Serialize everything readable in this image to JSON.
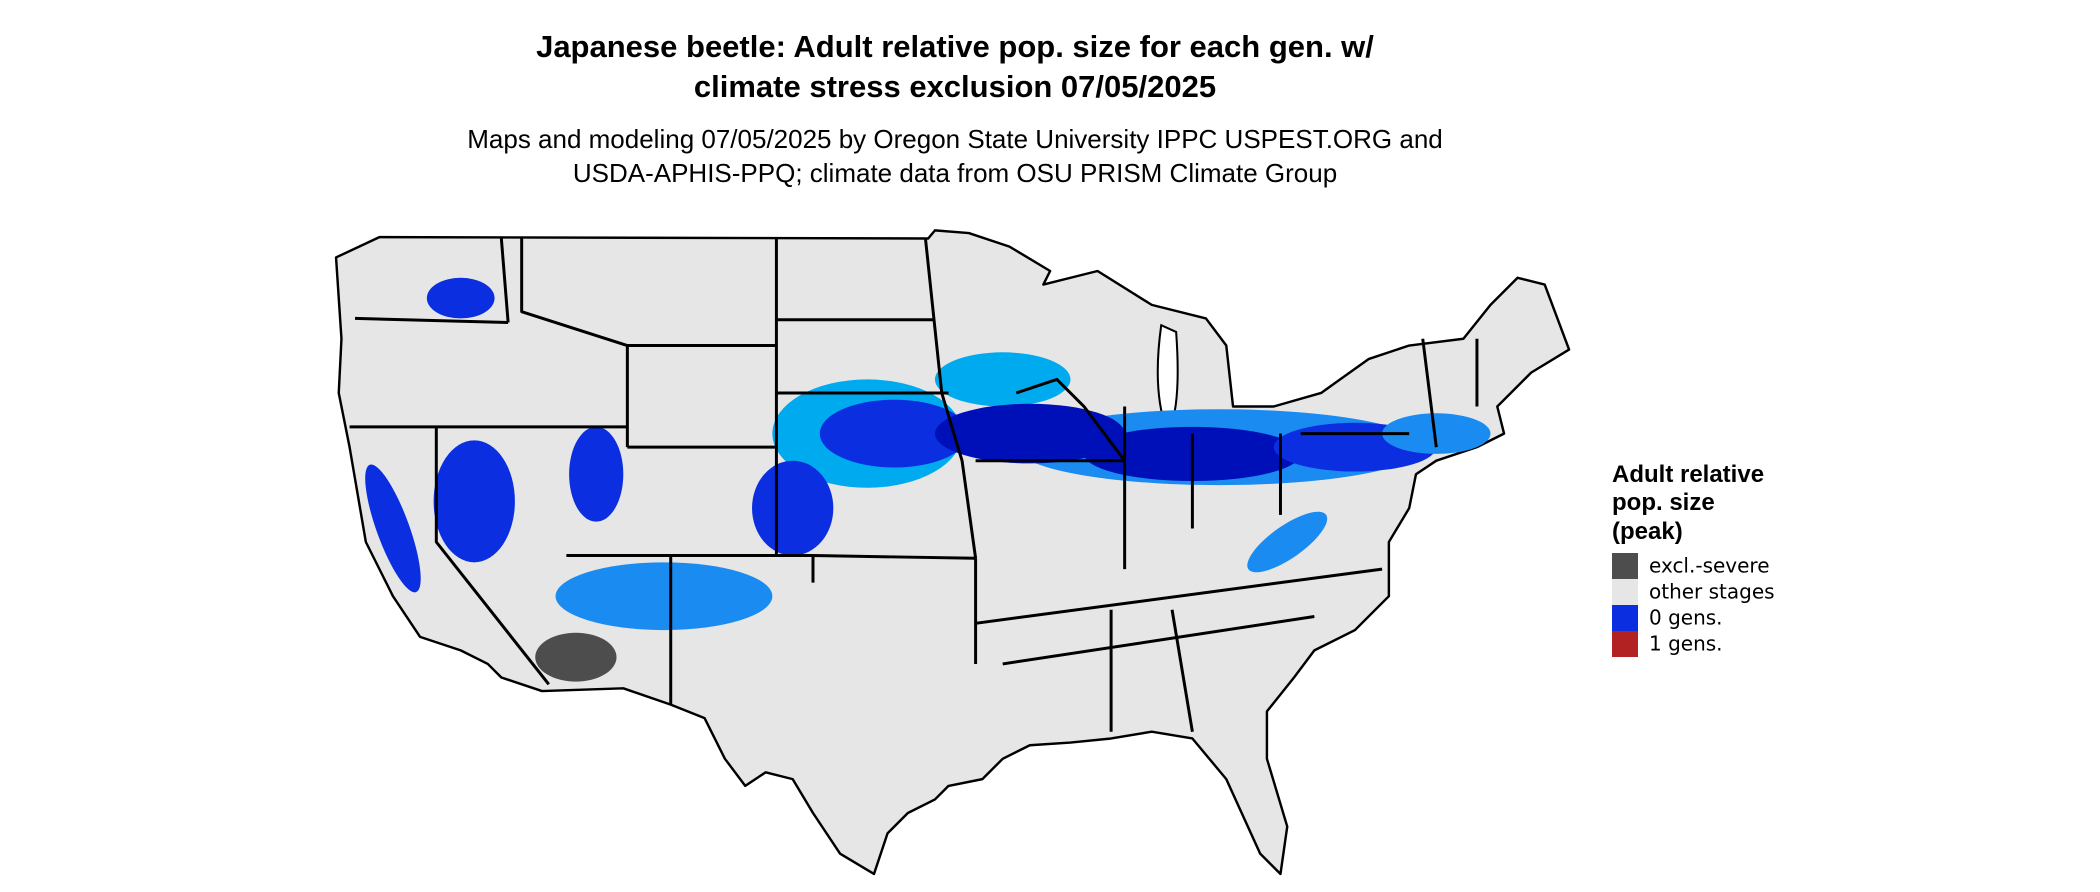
{
  "title": [
    "Japanese beetle: Adult relative pop. size for each gen. w/",
    "climate stress exclusion 07/05/2025"
  ],
  "subtitle": [
    "Maps and modeling 07/05/2025 by Oregon State University IPPC USPEST.ORG and",
    "USDA-APHIS-PPQ; climate data from OSU PRISM Climate Group"
  ],
  "legend": {
    "title": [
      "Adult relative",
      "pop. size",
      "(peak)"
    ],
    "items": [
      {
        "label": "excl.-severe",
        "color": "#4d4d4d"
      },
      {
        "label": "other stages",
        "color": "#e6e6e6"
      },
      {
        "label": "0 gens.",
        "color": "#0a2ee0"
      },
      {
        "label": "1 gens.",
        "color": "#b22222"
      }
    ]
  }
}
